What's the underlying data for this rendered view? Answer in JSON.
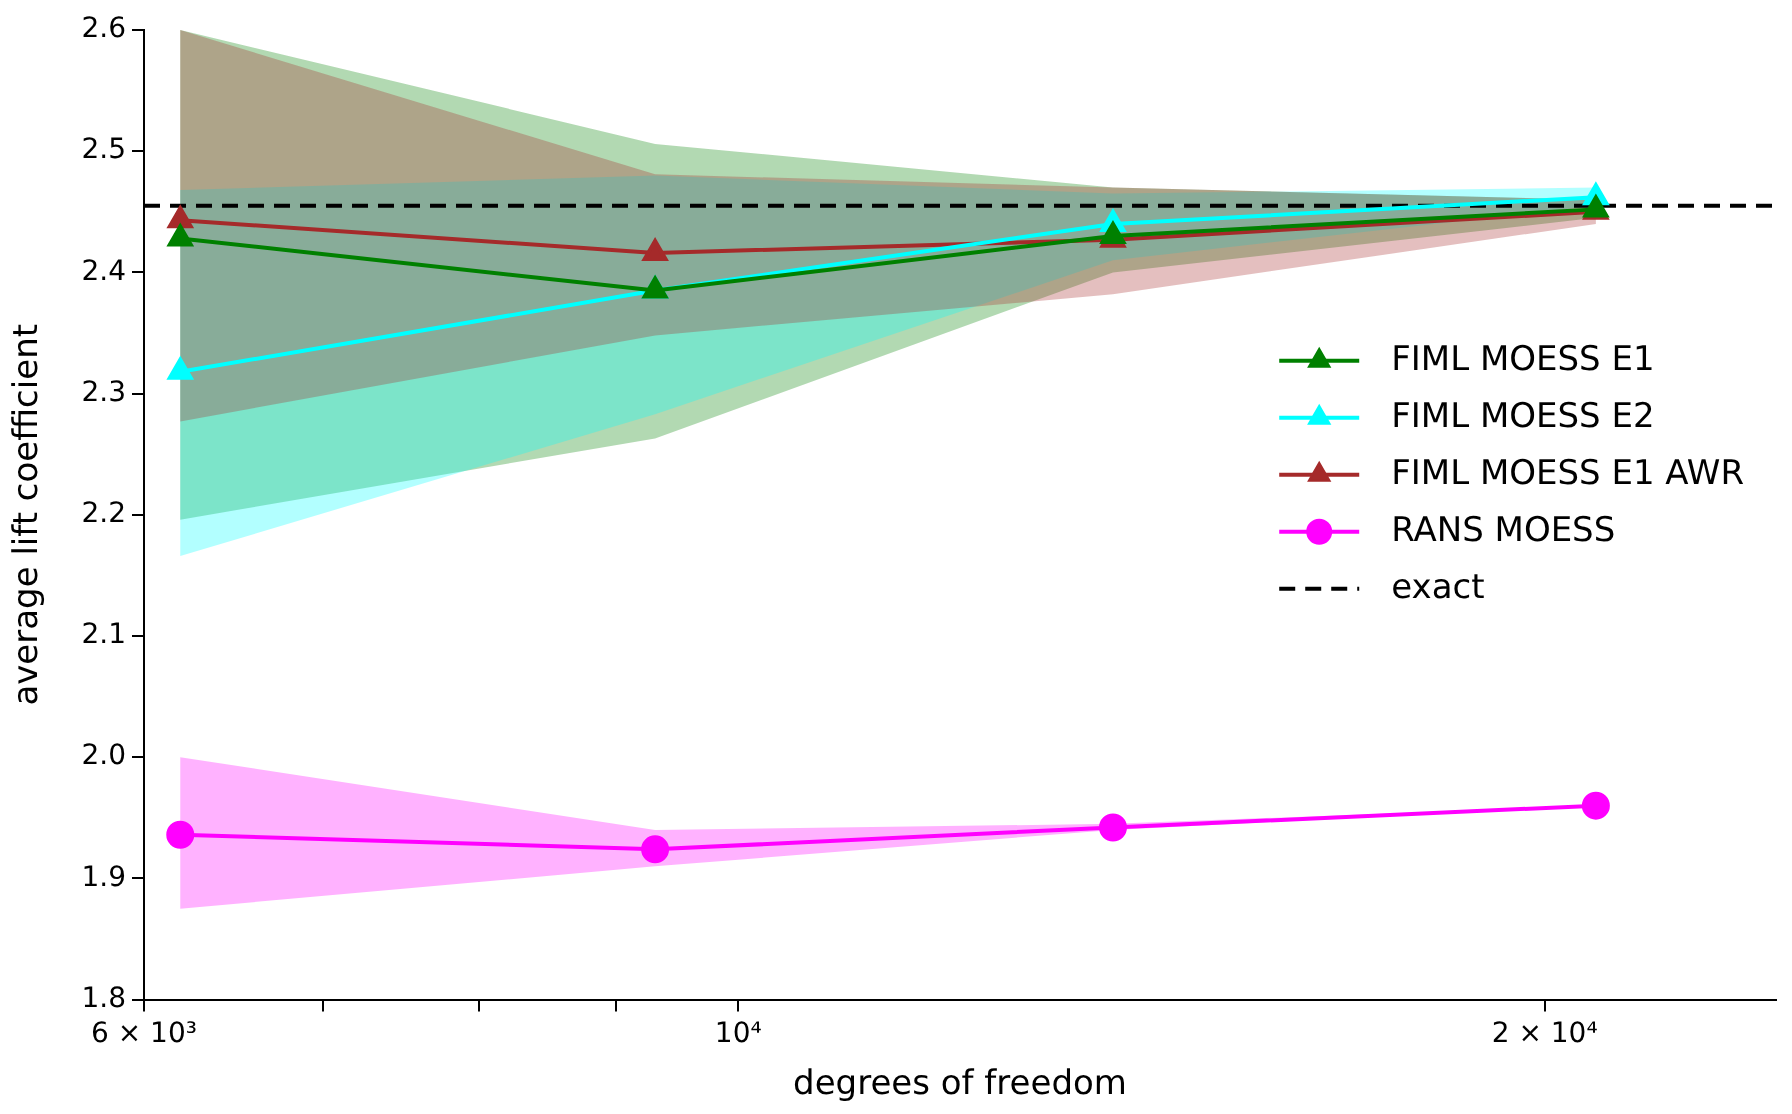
{
  "chart_data": {
    "type": "line",
    "xlabel": "degrees of freedom",
    "ylabel": "average lift coefficient",
    "x": [
      6190,
      9310,
      13800,
      20900
    ],
    "log": "x",
    "xlim": [
      6000,
      24400
    ],
    "xticks": [
      {
        "value": 6000,
        "label": "6 × 10³"
      },
      {
        "value": 7000,
        "label": null
      },
      {
        "value": 8000,
        "label": null
      },
      {
        "value": 9000,
        "label": null
      },
      {
        "value": 10000,
        "label": "10⁴"
      },
      {
        "value": 20000,
        "label": "2 × 10⁴"
      }
    ],
    "ylim": [
      1.8,
      2.6
    ],
    "yticks": [
      1.8,
      1.9,
      {
        "value": 2,
        "label": "2.0"
      },
      2.1,
      2.2,
      2.3,
      2.4,
      2.5,
      2.6
    ],
    "grid": false,
    "legend": "right",
    "line_style": "solid",
    "series": [
      {
        "name": "FIML MOESS E1",
        "color": "#008000",
        "marker": "triangle",
        "values": [
          2.428,
          2.385,
          2.43,
          2.452
        ],
        "lower": [
          2.196,
          2.263,
          2.4,
          2.445
        ],
        "upper": [
          2.6,
          2.506,
          2.47,
          2.46
        ]
      },
      {
        "name": "FIML MOESS E2",
        "color": "#00ffff",
        "marker": "triangle",
        "values": [
          2.318,
          2.385,
          2.44,
          2.462
        ],
        "lower": [
          2.166,
          2.283,
          2.41,
          2.455
        ],
        "upper": [
          2.468,
          2.48,
          2.465,
          2.47
        ]
      },
      {
        "name": "FIML MOESS E1 AWR",
        "color": "#a52a2a",
        "marker": "triangle",
        "values": [
          2.443,
          2.416,
          2.427,
          2.45
        ],
        "lower": [
          2.277,
          2.348,
          2.382,
          2.44
        ],
        "upper": [
          2.6,
          2.481,
          2.47,
          2.46
        ]
      },
      {
        "name": "RANS MOESS",
        "color": "#ff00ff",
        "marker": "circle",
        "values": [
          1.936,
          1.924,
          1.942,
          1.96
        ],
        "lower": [
          1.875,
          1.91,
          1.94,
          1.96
        ],
        "upper": [
          2.0,
          1.94,
          1.945,
          1.96
        ]
      }
    ],
    "ref_lines": [
      {
        "axis": "y",
        "value": 2.455,
        "label": "exact",
        "color": "#000000",
        "line_style": "dashed"
      }
    ]
  }
}
